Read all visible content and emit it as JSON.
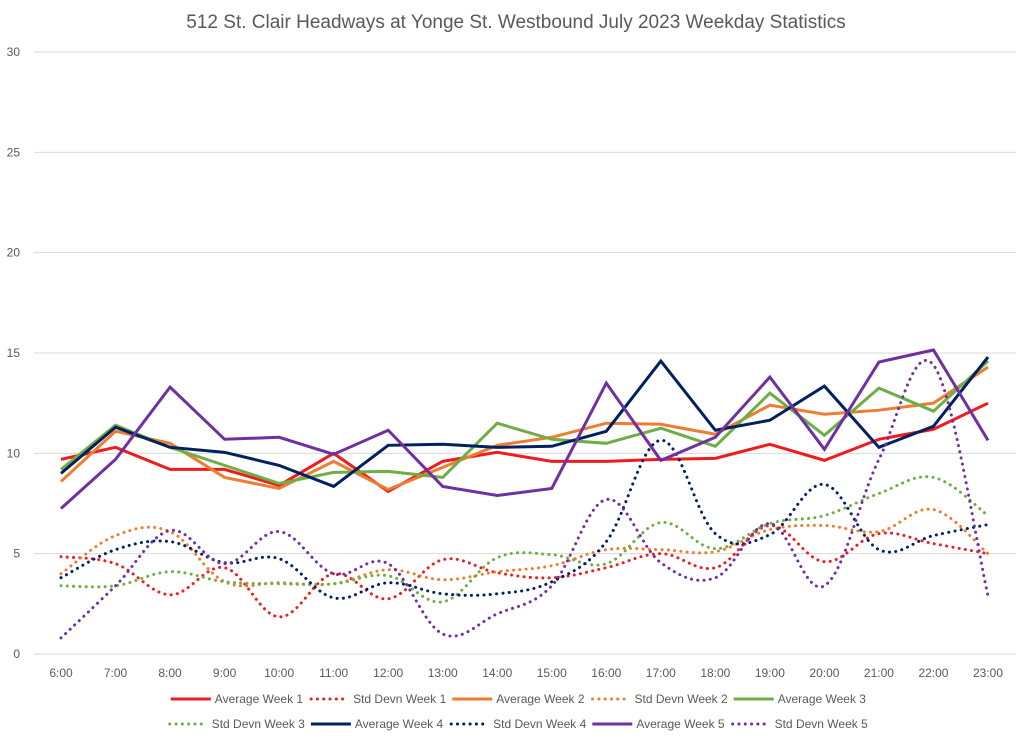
{
  "chart_data": {
    "type": "line",
    "title": "512 St. Clair Headways at Yonge St. Westbound July 2023 Weekday Statistics",
    "xlabel": "",
    "ylabel": "",
    "ylim": [
      0,
      30
    ],
    "yticks": [
      0,
      5,
      10,
      15,
      20,
      25,
      30
    ],
    "grid": true,
    "legend_position": "bottom",
    "categories": [
      "6:00",
      "7:00",
      "8:00",
      "9:00",
      "10:00",
      "11:00",
      "12:00",
      "13:00",
      "14:00",
      "15:00",
      "16:00",
      "17:00",
      "18:00",
      "19:00",
      "20:00",
      "21:00",
      "22:00",
      "23:00"
    ],
    "series": [
      {
        "name": "Average Week 1",
        "color": "#ee1c1c",
        "style": "solid",
        "values": [
          9.7,
          10.3,
          9.2,
          9.2,
          8.4,
          10.0,
          8.1,
          9.6,
          10.05,
          9.6,
          9.6,
          9.7,
          9.75,
          10.45,
          9.65,
          10.7,
          11.2,
          12.5
        ]
      },
      {
        "name": "Std Devn Week 1",
        "color": "#ee1c1c",
        "style": "dotted",
        "values": [
          4.85,
          4.5,
          2.95,
          4.3,
          1.85,
          4.0,
          2.75,
          4.7,
          4.05,
          3.8,
          4.3,
          5.0,
          4.3,
          6.4,
          4.6,
          6.0,
          5.5,
          5.0
        ]
      },
      {
        "name": "Average Week 2",
        "color": "#ed7d31",
        "style": "solid",
        "values": [
          8.6,
          11.1,
          10.5,
          8.8,
          8.25,
          9.6,
          8.2,
          9.3,
          10.4,
          10.8,
          11.5,
          11.45,
          10.95,
          12.4,
          11.95,
          12.15,
          12.5,
          14.3
        ]
      },
      {
        "name": "Std Devn Week 2",
        "color": "#ed7d31",
        "style": "dotted",
        "values": [
          4.0,
          5.9,
          6.1,
          3.6,
          3.55,
          3.5,
          4.2,
          3.7,
          4.1,
          4.4,
          5.2,
          5.2,
          5.1,
          6.2,
          6.4,
          6.1,
          7.2,
          5.0
        ]
      },
      {
        "name": "Average Week 3",
        "color": "#70ad47",
        "style": "solid",
        "values": [
          9.2,
          11.4,
          10.3,
          9.4,
          8.5,
          9.05,
          9.1,
          8.8,
          11.5,
          10.7,
          10.5,
          11.25,
          10.35,
          13.0,
          10.9,
          13.25,
          12.1,
          14.6
        ]
      },
      {
        "name": "Std Devn Week 3",
        "color": "#70ad47",
        "style": "dotted",
        "values": [
          3.4,
          3.4,
          4.1,
          3.6,
          3.5,
          3.5,
          3.9,
          2.6,
          4.8,
          4.95,
          4.5,
          6.55,
          5.25,
          6.5,
          6.9,
          8.0,
          8.8,
          6.9
        ]
      },
      {
        "name": "Average Week 4",
        "color": "#002060",
        "style": "solid",
        "values": [
          9.0,
          11.3,
          10.3,
          10.05,
          9.4,
          8.35,
          10.4,
          10.45,
          10.3,
          10.35,
          11.1,
          14.6,
          11.15,
          11.65,
          13.35,
          10.3,
          11.35,
          14.8
        ]
      },
      {
        "name": "Std Devn Week 4",
        "color": "#002060",
        "style": "dotted",
        "values": [
          3.8,
          5.2,
          5.6,
          4.55,
          4.75,
          2.8,
          3.55,
          3.0,
          3.0,
          3.6,
          5.6,
          10.65,
          6.0,
          5.95,
          8.45,
          5.2,
          5.9,
          6.45
        ]
      },
      {
        "name": "Average Week 5",
        "color": "#7030a0",
        "style": "solid",
        "values": [
          7.25,
          9.7,
          13.3,
          10.7,
          10.8,
          9.95,
          11.15,
          8.35,
          7.9,
          8.25,
          13.5,
          9.65,
          10.8,
          13.8,
          10.2,
          14.55,
          15.15,
          10.65
        ]
      },
      {
        "name": "Std Devn Week 5",
        "color": "#7030a0",
        "style": "dotted",
        "values": [
          0.8,
          3.4,
          6.15,
          4.5,
          6.1,
          4.0,
          4.5,
          1.0,
          2.0,
          3.4,
          7.7,
          4.55,
          3.8,
          6.5,
          3.4,
          9.7,
          14.4,
          2.9
        ]
      }
    ]
  }
}
